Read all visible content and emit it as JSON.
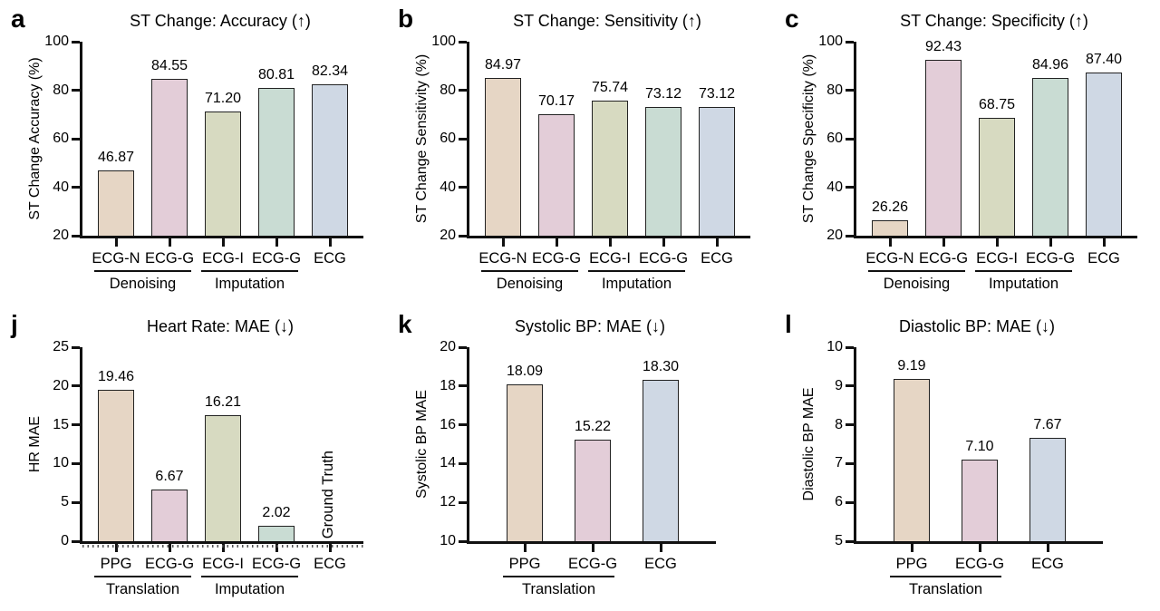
{
  "figure": {
    "background": "#ffffff",
    "style": {
      "axis_color": "#111111",
      "bar_border_color": "#222222",
      "text_color": "#000000",
      "palette": {
        "tan": "#e6d6c5",
        "pink": "#e3cdd8",
        "sage": "#d7dac1",
        "seafoam": "#c9dcd3",
        "blue": "#cfd8e4"
      }
    }
  },
  "chart_data": [
    {
      "type": "bar",
      "panel": "a",
      "title": "ST Change: Accuracy (↑)",
      "ylabel": "ST Change Accuracy (%)",
      "xlabel": "",
      "ylim": [
        20,
        100
      ],
      "yticks": [
        20,
        40,
        60,
        80,
        100
      ],
      "grid": false,
      "legend": "none",
      "categories": [
        "ECG-N",
        "ECG-G",
        "ECG-I",
        "ECG-G",
        "ECG"
      ],
      "values": [
        46.87,
        84.55,
        71.2,
        80.81,
        82.34
      ],
      "value_labels": [
        "46.87",
        "84.55",
        "71.20",
        "80.81",
        "82.34"
      ],
      "bar_colors": [
        "#e6d6c5",
        "#e3cdd8",
        "#d7dac1",
        "#c9dcd3",
        "#cfd8e4"
      ],
      "groups": [
        {
          "label": "Denoising",
          "from": 0,
          "to": 1
        },
        {
          "label": "Imputation",
          "from": 2,
          "to": 3
        }
      ]
    },
    {
      "type": "bar",
      "panel": "b",
      "title": "ST Change: Sensitivity (↑)",
      "ylabel": "ST Change Sensitivity (%)",
      "xlabel": "",
      "ylim": [
        20,
        100
      ],
      "yticks": [
        20,
        40,
        60,
        80,
        100
      ],
      "grid": false,
      "legend": "none",
      "categories": [
        "ECG-N",
        "ECG-G",
        "ECG-I",
        "ECG-G",
        "ECG"
      ],
      "values": [
        84.97,
        70.17,
        75.74,
        73.12,
        73.12
      ],
      "value_labels": [
        "84.97",
        "70.17",
        "75.74",
        "73.12",
        "73.12"
      ],
      "bar_colors": [
        "#e6d6c5",
        "#e3cdd8",
        "#d7dac1",
        "#c9dcd3",
        "#cfd8e4"
      ],
      "groups": [
        {
          "label": "Denoising",
          "from": 0,
          "to": 1
        },
        {
          "label": "Imputation",
          "from": 2,
          "to": 3
        }
      ]
    },
    {
      "type": "bar",
      "panel": "c",
      "title": "ST Change: Specificity (↑)",
      "ylabel": "ST Change Specificity (%)",
      "xlabel": "",
      "ylim": [
        20,
        100
      ],
      "yticks": [
        20,
        40,
        60,
        80,
        100
      ],
      "grid": false,
      "legend": "none",
      "categories": [
        "ECG-N",
        "ECG-G",
        "ECG-I",
        "ECG-G",
        "ECG"
      ],
      "values": [
        26.26,
        92.43,
        68.75,
        84.96,
        87.4
      ],
      "value_labels": [
        "26.26",
        "92.43",
        "68.75",
        "84.96",
        "87.40"
      ],
      "bar_colors": [
        "#e6d6c5",
        "#e3cdd8",
        "#d7dac1",
        "#c9dcd3",
        "#cfd8e4"
      ],
      "groups": [
        {
          "label": "Denoising",
          "from": 0,
          "to": 1
        },
        {
          "label": "Imputation",
          "from": 2,
          "to": 3
        }
      ]
    },
    {
      "type": "bar",
      "panel": "j",
      "title": "Heart Rate: MAE (↓)",
      "ylabel": "HR MAE",
      "xlabel": "",
      "ylim": [
        0,
        25
      ],
      "yticks": [
        0,
        5,
        10,
        15,
        20,
        25
      ],
      "grid": false,
      "legend": "none",
      "baseline_style": "hatched",
      "categories": [
        "PPG",
        "ECG-G",
        "ECG-I",
        "ECG-G",
        "ECG"
      ],
      "values": [
        19.46,
        6.67,
        16.21,
        2.02,
        null
      ],
      "value_labels": [
        "19.46",
        "6.67",
        "16.21",
        "2.02",
        ""
      ],
      "bar_colors": [
        "#e6d6c5",
        "#e3cdd8",
        "#d7dac1",
        "#c9dcd3",
        "#cfd8e4"
      ],
      "groups": [
        {
          "label": "Translation",
          "from": 0,
          "to": 1
        },
        {
          "label": "Imputation",
          "from": 2,
          "to": 3
        }
      ],
      "annotations": [
        {
          "index": 4,
          "text": "Ground Truth",
          "orientation": "vertical"
        }
      ]
    },
    {
      "type": "bar",
      "panel": "k",
      "title": "Systolic BP: MAE (↓)",
      "ylabel": "Systolic BP MAE",
      "xlabel": "",
      "ylim": [
        10,
        20
      ],
      "yticks": [
        10,
        12,
        14,
        16,
        18,
        20
      ],
      "grid": false,
      "legend": "none",
      "categories": [
        "PPG",
        "ECG-G",
        "ECG"
      ],
      "values": [
        18.09,
        15.22,
        18.3
      ],
      "value_labels": [
        "18.09",
        "15.22",
        "18.30"
      ],
      "bar_colors": [
        "#e6d6c5",
        "#e3cdd8",
        "#cfd8e4"
      ],
      "groups": [
        {
          "label": "Translation",
          "from": 0,
          "to": 1
        }
      ]
    },
    {
      "type": "bar",
      "panel": "l",
      "title": "Diastolic BP: MAE (↓)",
      "ylabel": "Diastolic BP MAE",
      "xlabel": "",
      "ylim": [
        5,
        10
      ],
      "yticks": [
        5,
        6,
        7,
        8,
        9,
        10
      ],
      "grid": false,
      "legend": "none",
      "categories": [
        "PPG",
        "ECG-G",
        "ECG"
      ],
      "values": [
        9.19,
        7.1,
        7.67
      ],
      "value_labels": [
        "9.19",
        "7.10",
        "7.67"
      ],
      "bar_colors": [
        "#e6d6c5",
        "#e3cdd8",
        "#cfd8e4"
      ],
      "groups": [
        {
          "label": "Translation",
          "from": 0,
          "to": 1
        }
      ]
    }
  ]
}
